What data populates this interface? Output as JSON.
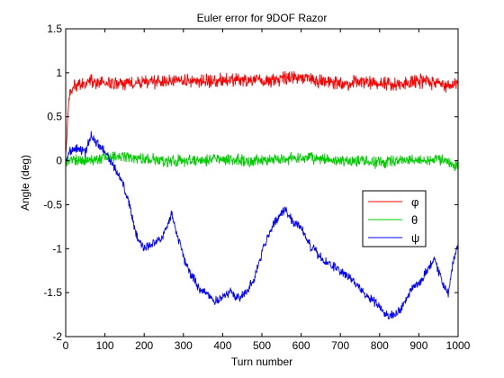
{
  "chart_data": {
    "type": "line",
    "title": "Euler error for 9DOF Razor",
    "xlabel": "Turn number",
    "ylabel": "Angle (deg)",
    "xlim": [
      0,
      1000
    ],
    "ylim": [
      -2,
      1.5
    ],
    "xticks": [
      0,
      100,
      200,
      300,
      400,
      500,
      600,
      700,
      800,
      900,
      1000
    ],
    "yticks": [
      -2,
      -1.5,
      -1,
      -0.5,
      0,
      0.5,
      1,
      1.5
    ],
    "xtick_labels": [
      "0",
      "100",
      "200",
      "300",
      "400",
      "500",
      "600",
      "700",
      "800",
      "900",
      "1000"
    ],
    "ytick_labels": [
      "-2",
      "-1.5",
      "-1",
      "-0.5",
      "0",
      "0.5",
      "1",
      "1.5"
    ],
    "grid": false,
    "legend_position": "right-center",
    "series": [
      {
        "name": "φ",
        "color": "#ff0000",
        "noise": 0.06,
        "x": [
          0,
          5,
          10,
          20,
          40,
          60,
          100,
          150,
          200,
          250,
          300,
          350,
          400,
          450,
          500,
          550,
          600,
          650,
          700,
          750,
          800,
          850,
          900,
          950,
          980,
          1000
        ],
        "y": [
          0.05,
          0.45,
          0.75,
          0.85,
          0.85,
          0.9,
          0.88,
          0.87,
          0.9,
          0.9,
          0.92,
          0.9,
          0.92,
          0.92,
          0.9,
          0.93,
          0.95,
          0.9,
          0.88,
          0.9,
          0.88,
          0.88,
          0.9,
          0.88,
          0.85,
          0.9
        ]
      },
      {
        "name": "θ",
        "color": "#00cc00",
        "noise": 0.05,
        "x": [
          0,
          50,
          100,
          150,
          200,
          250,
          300,
          350,
          400,
          450,
          500,
          550,
          600,
          650,
          700,
          750,
          800,
          850,
          900,
          950,
          1000
        ],
        "y": [
          0.0,
          0.0,
          0.05,
          0.05,
          0.02,
          0.0,
          0.0,
          0.0,
          0.02,
          0.0,
          0.0,
          0.02,
          0.03,
          0.02,
          0.0,
          0.0,
          -0.02,
          0.0,
          0.0,
          0.02,
          -0.05
        ]
      },
      {
        "name": "ψ",
        "color": "#0000ff",
        "noise": 0.04,
        "x": [
          0,
          10,
          30,
          50,
          65,
          80,
          100,
          120,
          140,
          160,
          180,
          200,
          220,
          250,
          270,
          285,
          300,
          320,
          340,
          360,
          380,
          400,
          420,
          440,
          460,
          480,
          500,
          520,
          540,
          560,
          580,
          600,
          620,
          640,
          660,
          700,
          740,
          770,
          800,
          820,
          840,
          860,
          880,
          900,
          920,
          940,
          960,
          975,
          985,
          1000
        ],
        "y": [
          0.0,
          0.1,
          0.15,
          0.1,
          0.28,
          0.2,
          0.1,
          -0.05,
          -0.2,
          -0.45,
          -0.85,
          -1.0,
          -0.95,
          -0.85,
          -0.6,
          -0.85,
          -1.1,
          -1.3,
          -1.45,
          -1.5,
          -1.6,
          -1.55,
          -1.5,
          -1.55,
          -1.5,
          -1.35,
          -1.05,
          -0.8,
          -0.65,
          -0.55,
          -0.7,
          -0.75,
          -0.95,
          -1.05,
          -1.15,
          -1.25,
          -1.4,
          -1.55,
          -1.65,
          -1.75,
          -1.75,
          -1.65,
          -1.45,
          -1.4,
          -1.25,
          -1.1,
          -1.4,
          -1.5,
          -1.2,
          -0.95
        ]
      }
    ]
  }
}
